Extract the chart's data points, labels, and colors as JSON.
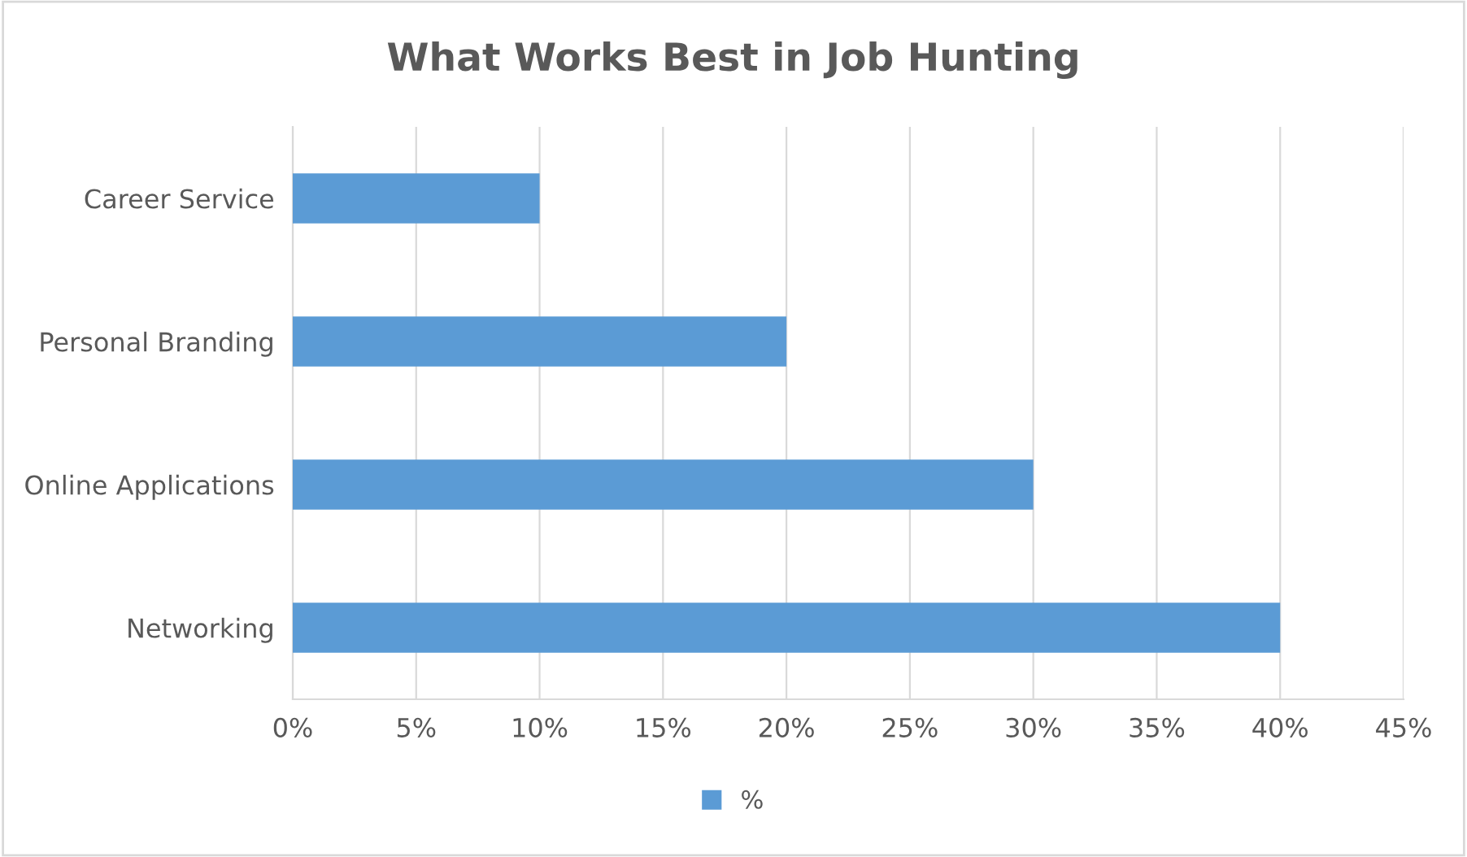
{
  "chart_data": {
    "type": "bar",
    "orientation": "horizontal",
    "title": "What Works Best in Job Hunting",
    "categories": [
      "Career Service",
      "Personal Branding",
      "Online Applications",
      "Networking"
    ],
    "series": [
      {
        "name": "%",
        "color": "#5b9bd5",
        "values": [
          10,
          20,
          30,
          40
        ]
      }
    ],
    "xlim": [
      0,
      45
    ],
    "xticks": [
      {
        "value": 0,
        "label": "0%"
      },
      {
        "value": 5,
        "label": "5%"
      },
      {
        "value": 10,
        "label": "10%"
      },
      {
        "value": 15,
        "label": "15%"
      },
      {
        "value": 20,
        "label": "20%"
      },
      {
        "value": 25,
        "label": "25%"
      },
      {
        "value": 30,
        "label": "30%"
      },
      {
        "value": 35,
        "label": "35%"
      },
      {
        "value": 40,
        "label": "40%"
      },
      {
        "value": 45,
        "label": "45%"
      }
    ],
    "grid": "x",
    "legend": "bottom"
  }
}
